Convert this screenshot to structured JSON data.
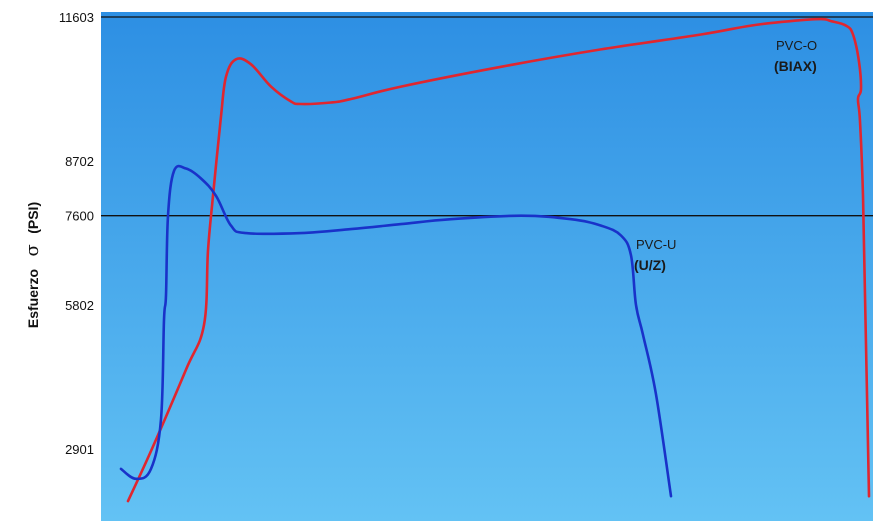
{
  "chart_data": {
    "type": "line",
    "title": "",
    "xlabel": "",
    "ylabel": "Esfuerzo",
    "ylabel_symbol": "σ",
    "ylabel_unit": "(PSI)",
    "yticks": [
      "11603",
      "8702",
      "7600",
      "5802",
      "2901"
    ],
    "ylim": [
      1450,
      11703
    ],
    "reference_lines": [
      11603,
      7600
    ],
    "grid": false,
    "colors": {
      "bg_top": "#2d8fe3",
      "bg_bottom": "#63c2f4"
    },
    "series": [
      {
        "name": "PVC-O",
        "name_sub": "(BIAX)",
        "color": "#e0262f",
        "points": [
          [
            27,
            1850
          ],
          [
            52,
            2950
          ],
          [
            85,
            4500
          ],
          [
            103,
            5400
          ],
          [
            107,
            6900
          ],
          [
            112,
            8000
          ],
          [
            120,
            9600
          ],
          [
            125,
            10400
          ],
          [
            135,
            10750
          ],
          [
            150,
            10650
          ],
          [
            170,
            10200
          ],
          [
            190,
            9900
          ],
          [
            200,
            9850
          ],
          [
            230,
            9880
          ],
          [
            250,
            9950
          ],
          [
            300,
            10200
          ],
          [
            400,
            10600
          ],
          [
            500,
            10950
          ],
          [
            600,
            11250
          ],
          [
            650,
            11430
          ],
          [
            690,
            11520
          ],
          [
            720,
            11560
          ],
          [
            730,
            11520
          ],
          [
            745,
            11430
          ],
          [
            752,
            11250
          ],
          [
            758,
            10700
          ],
          [
            760,
            10150
          ],
          [
            757,
            9950
          ],
          [
            759,
            9500
          ],
          [
            762,
            8000
          ],
          [
            765,
            5000
          ],
          [
            768,
            1950
          ]
        ]
      },
      {
        "name": "PVC-U",
        "name_sub": "(U/Z)",
        "color": "#1932c9",
        "points": [
          [
            20,
            2500
          ],
          [
            35,
            2300
          ],
          [
            50,
            2500
          ],
          [
            60,
            3500
          ],
          [
            63,
            5500
          ],
          [
            65,
            6000
          ],
          [
            67,
            7600
          ],
          [
            73,
            8500
          ],
          [
            85,
            8550
          ],
          [
            100,
            8350
          ],
          [
            115,
            8000
          ],
          [
            130,
            7400
          ],
          [
            145,
            7250
          ],
          [
            200,
            7250
          ],
          [
            250,
            7330
          ],
          [
            300,
            7430
          ],
          [
            350,
            7530
          ],
          [
            420,
            7600
          ],
          [
            470,
            7530
          ],
          [
            500,
            7400
          ],
          [
            520,
            7200
          ],
          [
            530,
            6800
          ],
          [
            535,
            5800
          ],
          [
            542,
            5200
          ],
          [
            555,
            4000
          ],
          [
            570,
            1950
          ]
        ]
      }
    ]
  }
}
